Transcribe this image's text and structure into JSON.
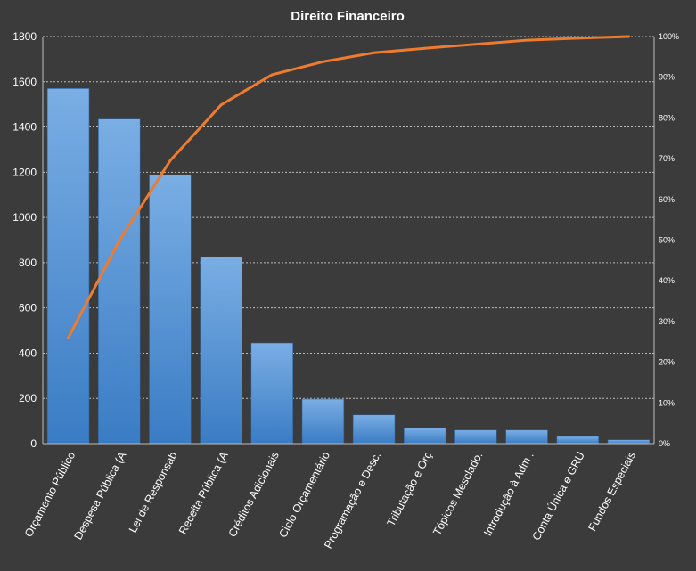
{
  "chart_data": {
    "type": "bar",
    "title": "Direito  Financeiro",
    "categories": [
      "Orçamento Público",
      "Despesa Pública (A",
      "Lei de Responsab",
      "Receita Pública (A",
      "Créditos Adicionais",
      "Ciclo Orçamentário",
      "Programação e Desc.",
      "Tributação e Orç",
      "Tópicos Mesclado.",
      "Introdução à Adm .",
      "Conta Única e GRU",
      "Fundos  Especiais"
    ],
    "series": [
      {
        "type": "bar",
        "axis": "left",
        "values": [
          1570,
          1435,
          1188,
          826,
          445,
          197,
          127,
          70,
          60,
          60,
          32,
          17
        ]
      },
      {
        "type": "line",
        "axis": "right",
        "values": [
          0.26,
          0.498,
          0.695,
          0.832,
          0.906,
          0.938,
          0.96,
          0.971,
          0.981,
          0.991,
          0.996,
          1.0
        ]
      }
    ],
    "ylim": [
      0,
      1800
    ],
    "yticks": [
      "0",
      "200",
      "400",
      "600",
      "800",
      "1000",
      "1200",
      "1400",
      "1600",
      "1800"
    ],
    "y2lim": [
      0,
      1
    ],
    "y2ticks": [
      "0%",
      "10%",
      "20%",
      "30%",
      "40%",
      "50%",
      "60%",
      "70%",
      "80%",
      "90%",
      "100%"
    ],
    "grid": true,
    "legend": "none",
    "colors": {
      "background": "#3b3b3b",
      "bar_top": "#7aaee4",
      "bar_bottom": "#3a7cc4",
      "bar_stroke": "#2d5f96",
      "line": "#ef7b2e",
      "grid": "#bcbcbc",
      "text": "#ffffff"
    }
  }
}
